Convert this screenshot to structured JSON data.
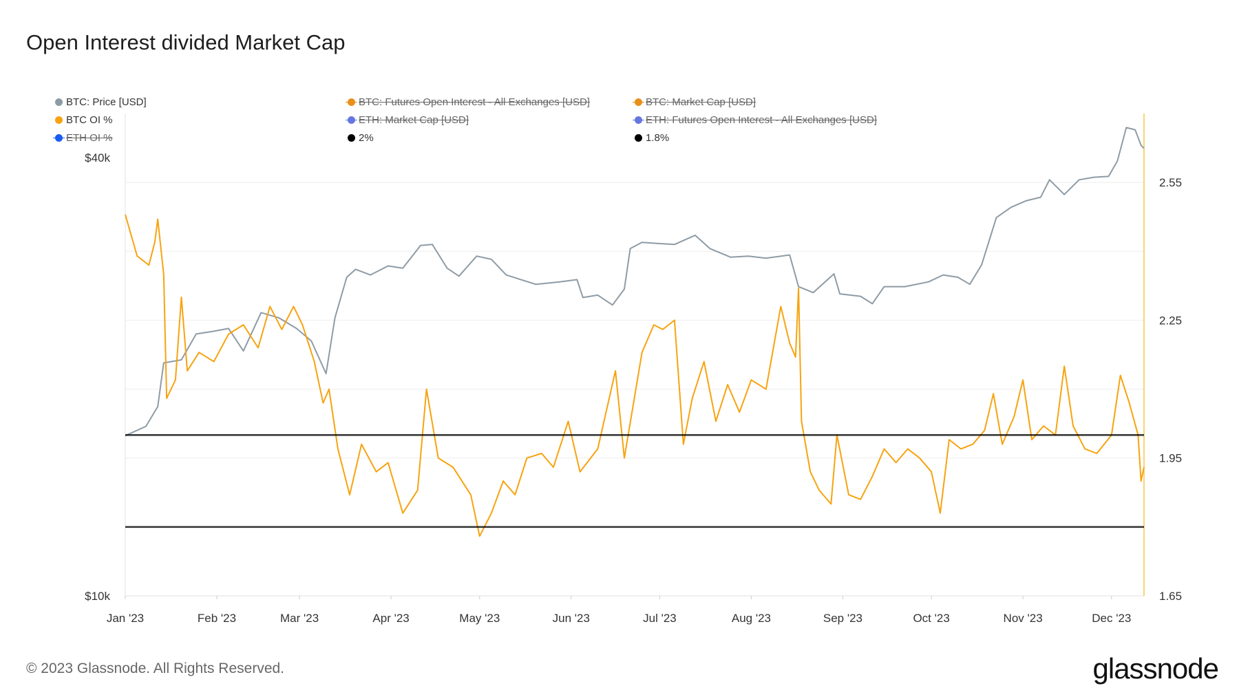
{
  "title": "Open Interest divided Market Cap",
  "legend": [
    {
      "label": "BTC: Price [USD]",
      "color": "#8e9ba5",
      "active": true
    },
    {
      "label": "BTC: Futures Open Interest - All Exchanges [USD]",
      "color": "#e8901b",
      "active": false
    },
    {
      "label": "BTC: Market Cap [USD]",
      "color": "#e8901b",
      "active": false
    },
    {
      "label": "BTC OI %",
      "color": "#f7a30f",
      "active": true
    },
    {
      "label": "ETH: Market Cap [USD]",
      "color": "#6477e0",
      "active": false
    },
    {
      "label": "ETH: Futures Open Interest - All Exchanges [USD]",
      "color": "#6477e0",
      "active": false
    },
    {
      "label": "ETH OI %",
      "color": "#1a5cf0",
      "active": false
    },
    {
      "label": "2%",
      "color": "#000000",
      "active": true
    },
    {
      "label": "1.8%",
      "color": "#000000",
      "active": true
    }
  ],
  "footer": "© 2023 Glassnode. All Rights Reserved.",
  "brand": "glassnode",
  "chart_data": {
    "type": "line",
    "title": "Open Interest divided Market Cap",
    "x_tick_labels": [
      "Jan '23",
      "Feb '23",
      "Mar '23",
      "Apr '23",
      "May '23",
      "Jun '23",
      "Jul '23",
      "Aug '23",
      "Sep '23",
      "Oct '23",
      "Nov '23",
      "Dec '23"
    ],
    "x_range": [
      "2023-01-01",
      "2023-12-12"
    ],
    "y_left": {
      "scale": "log",
      "range": [
        10000,
        46000
      ],
      "tick_labels": [
        "$10k",
        "$40k"
      ],
      "tick_values": [
        10000,
        40000
      ]
    },
    "y_right": {
      "scale": "linear",
      "range": [
        1.65,
        2.7
      ],
      "tick_labels": [
        "1.65",
        "1.95",
        "2.25",
        "2.55"
      ],
      "tick_values": [
        1.65,
        1.95,
        2.25,
        2.55
      ]
    },
    "grid": true,
    "legend_position": "top",
    "series": [
      {
        "name": "BTC: Price [USD]",
        "axis": "left",
        "color": "#8e9ba5",
        "points": [
          [
            "2023-01-01",
            16600
          ],
          [
            "2023-01-08",
            17100
          ],
          [
            "2023-01-12",
            18200
          ],
          [
            "2023-01-14",
            20900
          ],
          [
            "2023-01-20",
            21100
          ],
          [
            "2023-01-25",
            22900
          ],
          [
            "2023-01-31",
            23100
          ],
          [
            "2023-02-05",
            23300
          ],
          [
            "2023-02-10",
            21700
          ],
          [
            "2023-02-16",
            24500
          ],
          [
            "2023-02-22",
            24100
          ],
          [
            "2023-02-28",
            23300
          ],
          [
            "2023-03-05",
            22400
          ],
          [
            "2023-03-10",
            20200
          ],
          [
            "2023-03-13",
            24100
          ],
          [
            "2023-03-17",
            27400
          ],
          [
            "2023-03-20",
            28100
          ],
          [
            "2023-03-25",
            27600
          ],
          [
            "2023-03-31",
            28400
          ],
          [
            "2023-04-05",
            28200
          ],
          [
            "2023-04-11",
            30300
          ],
          [
            "2023-04-15",
            30400
          ],
          [
            "2023-04-20",
            28200
          ],
          [
            "2023-04-24",
            27500
          ],
          [
            "2023-04-30",
            29300
          ],
          [
            "2023-05-05",
            29000
          ],
          [
            "2023-05-10",
            27600
          ],
          [
            "2023-05-15",
            27200
          ],
          [
            "2023-05-20",
            26800
          ],
          [
            "2023-05-28",
            27000
          ],
          [
            "2023-06-03",
            27200
          ],
          [
            "2023-06-05",
            25700
          ],
          [
            "2023-06-10",
            25900
          ],
          [
            "2023-06-15",
            25100
          ],
          [
            "2023-06-19",
            26400
          ],
          [
            "2023-06-21",
            30000
          ],
          [
            "2023-06-25",
            30600
          ],
          [
            "2023-06-30",
            30500
          ],
          [
            "2023-07-06",
            30400
          ],
          [
            "2023-07-13",
            31300
          ],
          [
            "2023-07-18",
            30000
          ],
          [
            "2023-07-25",
            29200
          ],
          [
            "2023-07-31",
            29300
          ],
          [
            "2023-08-06",
            29100
          ],
          [
            "2023-08-14",
            29400
          ],
          [
            "2023-08-17",
            26600
          ],
          [
            "2023-08-22",
            26100
          ],
          [
            "2023-08-29",
            27700
          ],
          [
            "2023-08-31",
            26000
          ],
          [
            "2023-09-07",
            25800
          ],
          [
            "2023-09-11",
            25200
          ],
          [
            "2023-09-15",
            26600
          ],
          [
            "2023-09-22",
            26600
          ],
          [
            "2023-09-30",
            27000
          ],
          [
            "2023-10-05",
            27600
          ],
          [
            "2023-10-10",
            27400
          ],
          [
            "2023-10-14",
            26800
          ],
          [
            "2023-10-18",
            28500
          ],
          [
            "2023-10-23",
            33100
          ],
          [
            "2023-10-28",
            34200
          ],
          [
            "2023-11-02",
            34900
          ],
          [
            "2023-11-07",
            35300
          ],
          [
            "2023-11-10",
            37300
          ],
          [
            "2023-11-15",
            35600
          ],
          [
            "2023-11-20",
            37300
          ],
          [
            "2023-11-25",
            37600
          ],
          [
            "2023-11-30",
            37700
          ],
          [
            "2023-12-03",
            39600
          ],
          [
            "2023-12-06",
            44000
          ],
          [
            "2023-12-09",
            43700
          ],
          [
            "2023-12-11",
            41600
          ],
          [
            "2023-12-12",
            41200
          ]
        ]
      },
      {
        "name": "BTC OI %",
        "axis": "right",
        "color": "#f7a30f",
        "points": [
          [
            "2023-01-01",
            2.48
          ],
          [
            "2023-01-05",
            2.39
          ],
          [
            "2023-01-09",
            2.37
          ],
          [
            "2023-01-11",
            2.42
          ],
          [
            "2023-01-12",
            2.47
          ],
          [
            "2023-01-14",
            2.35
          ],
          [
            "2023-01-15",
            2.08
          ],
          [
            "2023-01-18",
            2.12
          ],
          [
            "2023-01-20",
            2.3
          ],
          [
            "2023-01-22",
            2.14
          ],
          [
            "2023-01-26",
            2.18
          ],
          [
            "2023-01-31",
            2.16
          ],
          [
            "2023-02-05",
            2.22
          ],
          [
            "2023-02-10",
            2.24
          ],
          [
            "2023-02-15",
            2.19
          ],
          [
            "2023-02-19",
            2.28
          ],
          [
            "2023-02-23",
            2.23
          ],
          [
            "2023-02-27",
            2.28
          ],
          [
            "2023-03-02",
            2.24
          ],
          [
            "2023-03-06",
            2.16
          ],
          [
            "2023-03-09",
            2.07
          ],
          [
            "2023-03-11",
            2.1
          ],
          [
            "2023-03-14",
            1.97
          ],
          [
            "2023-03-18",
            1.87
          ],
          [
            "2023-03-22",
            1.98
          ],
          [
            "2023-03-27",
            1.92
          ],
          [
            "2023-03-31",
            1.94
          ],
          [
            "2023-04-05",
            1.83
          ],
          [
            "2023-04-10",
            1.88
          ],
          [
            "2023-04-13",
            2.1
          ],
          [
            "2023-04-17",
            1.95
          ],
          [
            "2023-04-22",
            1.93
          ],
          [
            "2023-04-28",
            1.87
          ],
          [
            "2023-05-01",
            1.78
          ],
          [
            "2023-05-05",
            1.83
          ],
          [
            "2023-05-09",
            1.9
          ],
          [
            "2023-05-13",
            1.87
          ],
          [
            "2023-05-17",
            1.95
          ],
          [
            "2023-05-22",
            1.96
          ],
          [
            "2023-05-26",
            1.93
          ],
          [
            "2023-05-31",
            2.03
          ],
          [
            "2023-06-04",
            1.92
          ],
          [
            "2023-06-10",
            1.97
          ],
          [
            "2023-06-16",
            2.14
          ],
          [
            "2023-06-19",
            1.95
          ],
          [
            "2023-06-25",
            2.18
          ],
          [
            "2023-06-29",
            2.24
          ],
          [
            "2023-07-02",
            2.23
          ],
          [
            "2023-07-06",
            2.25
          ],
          [
            "2023-07-09",
            1.98
          ],
          [
            "2023-07-12",
            2.08
          ],
          [
            "2023-07-16",
            2.16
          ],
          [
            "2023-07-20",
            2.03
          ],
          [
            "2023-07-24",
            2.11
          ],
          [
            "2023-07-28",
            2.05
          ],
          [
            "2023-08-01",
            2.12
          ],
          [
            "2023-08-06",
            2.1
          ],
          [
            "2023-08-11",
            2.28
          ],
          [
            "2023-08-14",
            2.2
          ],
          [
            "2023-08-16",
            2.17
          ],
          [
            "2023-08-17",
            2.32
          ],
          [
            "2023-08-18",
            2.03
          ],
          [
            "2023-08-21",
            1.92
          ],
          [
            "2023-08-24",
            1.88
          ],
          [
            "2023-08-28",
            1.85
          ],
          [
            "2023-08-30",
            2.0
          ],
          [
            "2023-09-03",
            1.87
          ],
          [
            "2023-09-07",
            1.86
          ],
          [
            "2023-09-11",
            1.91
          ],
          [
            "2023-09-15",
            1.97
          ],
          [
            "2023-09-19",
            1.94
          ],
          [
            "2023-09-23",
            1.97
          ],
          [
            "2023-09-27",
            1.95
          ],
          [
            "2023-10-01",
            1.92
          ],
          [
            "2023-10-04",
            1.83
          ],
          [
            "2023-10-07",
            1.99
          ],
          [
            "2023-10-11",
            1.97
          ],
          [
            "2023-10-15",
            1.98
          ],
          [
            "2023-10-19",
            2.01
          ],
          [
            "2023-10-22",
            2.09
          ],
          [
            "2023-10-25",
            1.98
          ],
          [
            "2023-10-29",
            2.04
          ],
          [
            "2023-11-01",
            2.12
          ],
          [
            "2023-11-04",
            1.99
          ],
          [
            "2023-11-08",
            2.02
          ],
          [
            "2023-11-12",
            2.0
          ],
          [
            "2023-11-15",
            2.15
          ],
          [
            "2023-11-18",
            2.02
          ],
          [
            "2023-11-22",
            1.97
          ],
          [
            "2023-11-26",
            1.96
          ],
          [
            "2023-12-01",
            2.0
          ],
          [
            "2023-12-04",
            2.13
          ],
          [
            "2023-12-07",
            2.07
          ],
          [
            "2023-12-10",
            2.0
          ],
          [
            "2023-12-11",
            1.9
          ],
          [
            "2023-12-12",
            1.93
          ]
        ]
      },
      {
        "name": "2%",
        "axis": "right",
        "color": "#000000",
        "points": [
          [
            "2023-01-01",
            2.0
          ],
          [
            "2023-12-12",
            2.0
          ]
        ]
      },
      {
        "name": "1.8%",
        "axis": "right",
        "color": "#000000",
        "points": [
          [
            "2023-01-01",
            1.8
          ],
          [
            "2023-12-12",
            1.8
          ]
        ]
      }
    ]
  }
}
